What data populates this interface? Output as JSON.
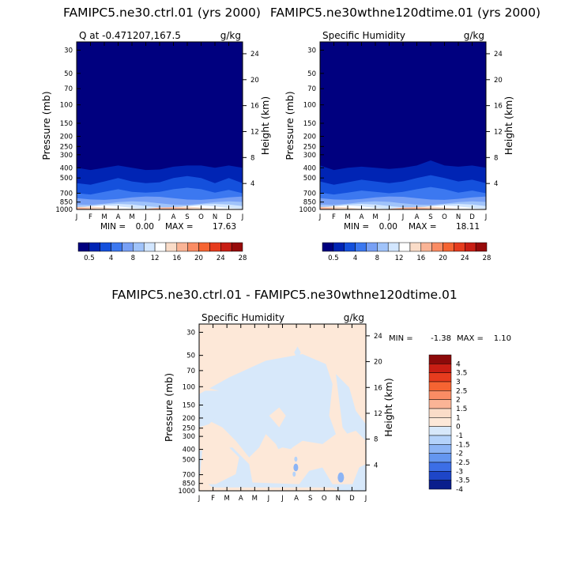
{
  "chart_data": [
    {
      "type": "heatmap",
      "title": "FAMIPC5.ne30.ctrl.01 (yrs 2000)",
      "subtitle_left": "Q at -0.471207,167.5",
      "subtitle_right": "g/kg",
      "xlabel": "",
      "ylabel": "Pressure (mb)",
      "ylabel_right": "Height (km)",
      "x_ticks": [
        "J",
        "F",
        "M",
        "A",
        "M",
        "J",
        "J",
        "A",
        "S",
        "O",
        "N",
        "D",
        "J"
      ],
      "y_ticks": [
        "30",
        "50",
        "70",
        "100",
        "150",
        "200",
        "250",
        "300",
        "400",
        "500",
        "700",
        "850",
        "1000"
      ],
      "y_ticks_right": [
        "24",
        "20",
        "16",
        "12",
        "8",
        "4"
      ],
      "y_scale": "log-pressure",
      "stats": {
        "min_label": "MIN =",
        "min": "0.00",
        "max_label": "MAX =",
        "max": "17.63"
      },
      "colorbar": {
        "labels": [
          "0.5",
          "4",
          "8",
          "12",
          "16",
          "20",
          "24",
          "28"
        ],
        "colors": [
          "#00007f",
          "#0024b4",
          "#1450dc",
          "#3c78f0",
          "#78a0f5",
          "#a0c3fa",
          "#d2e6ff",
          "#ffffff",
          "#fadcc8",
          "#fab496",
          "#fa8c64",
          "#f56432",
          "#e63c1e",
          "#c81e14",
          "#960a0a"
        ]
      },
      "fill_series": [
        {
          "name": "q_0.5_boundary",
          "top_mb": [
            400,
            420,
            400,
            380,
            400,
            420,
            415,
            390,
            380,
            380,
            400,
            380,
            400
          ]
        },
        {
          "name": "q_2",
          "top_mb": [
            560,
            580,
            540,
            500,
            540,
            560,
            550,
            500,
            480,
            500,
            560,
            500,
            560
          ]
        },
        {
          "name": "q_4",
          "top_mb": [
            700,
            720,
            680,
            640,
            680,
            690,
            680,
            640,
            620,
            640,
            690,
            650,
            700
          ]
        }
      ]
    },
    {
      "type": "heatmap",
      "title": "FAMIPC5.ne30wthne120dtime.01 (yrs 2000)",
      "subtitle_left": "Specific Humidity",
      "subtitle_right": "g/kg",
      "xlabel": "",
      "ylabel": "Pressure (mb)",
      "ylabel_right": "Height (km)",
      "x_ticks": [
        "J",
        "F",
        "M",
        "A",
        "M",
        "J",
        "J",
        "A",
        "S",
        "O",
        "N",
        "D",
        "J"
      ],
      "y_ticks": [
        "30",
        "50",
        "70",
        "100",
        "150",
        "200",
        "250",
        "300",
        "400",
        "500",
        "700",
        "850",
        "1000"
      ],
      "y_ticks_right": [
        "24",
        "20",
        "16",
        "12",
        "8",
        "4"
      ],
      "y_scale": "log-pressure",
      "stats": {
        "min_label": "MIN =",
        "min": "0.00",
        "max_label": "MAX =",
        "max": "18.11"
      },
      "colorbar": {
        "labels": [
          "0.5",
          "4",
          "8",
          "12",
          "16",
          "20",
          "24",
          "28"
        ],
        "colors": [
          "#00007f",
          "#0024b4",
          "#1450dc",
          "#3c78f0",
          "#78a0f5",
          "#a0c3fa",
          "#d2e6ff",
          "#ffffff",
          "#fadcc8",
          "#fab496",
          "#fa8c64",
          "#f56432",
          "#e63c1e",
          "#c81e14",
          "#960a0a"
        ]
      },
      "fill_series": [
        {
          "name": "q_0.5_boundary",
          "top_mb": [
            380,
            420,
            400,
            390,
            400,
            410,
            400,
            380,
            340,
            380,
            390,
            380,
            400
          ]
        },
        {
          "name": "q_2",
          "top_mb": [
            540,
            580,
            550,
            520,
            540,
            560,
            540,
            500,
            470,
            500,
            540,
            520,
            560
          ]
        },
        {
          "name": "q_4",
          "top_mb": [
            690,
            720,
            690,
            660,
            680,
            700,
            680,
            640,
            610,
            640,
            690,
            660,
            700
          ]
        }
      ]
    },
    {
      "type": "heatmap",
      "title": "FAMIPC5.ne30.ctrl.01 - FAMIPC5.ne30wthne120dtime.01",
      "subtitle_left": "Specific Humidity",
      "subtitle_right": "g/kg",
      "xlabel": "",
      "ylabel": "Pressure (mb)",
      "ylabel_right": "Height (km)",
      "x_ticks": [
        "J",
        "F",
        "M",
        "A",
        "M",
        "J",
        "J",
        "A",
        "S",
        "O",
        "N",
        "D",
        "J"
      ],
      "y_ticks": [
        "30",
        "50",
        "70",
        "100",
        "150",
        "200",
        "250",
        "300",
        "400",
        "500",
        "700",
        "850",
        "1000"
      ],
      "y_ticks_right": [
        "24",
        "20",
        "16",
        "12",
        "8",
        "4"
      ],
      "y_scale": "log-pressure",
      "stats": {
        "min_label": "MIN =",
        "min": "-1.38",
        "max_label": "MAX =",
        "max": "1.10"
      },
      "colorbar": {
        "labels": [
          "4",
          "3.5",
          "3",
          "2.5",
          "2",
          "1.5",
          "1",
          "0",
          "-1",
          "-1.5",
          "-2",
          "-2.5",
          "-3",
          "-3.5",
          "-4"
        ],
        "colors": [
          "#8c0a0a",
          "#c81e14",
          "#e63c1e",
          "#f56432",
          "#fa8c64",
          "#fab496",
          "#fadcc8",
          "#fde8d8",
          "#d7e8fa",
          "#b4d2fa",
          "#8cb4f5",
          "#6496f0",
          "#3c6ee6",
          "#1e46c8",
          "#0a1e8c"
        ]
      },
      "background_color": "#fde8d8",
      "negative_color": "#d7e8fa"
    }
  ]
}
